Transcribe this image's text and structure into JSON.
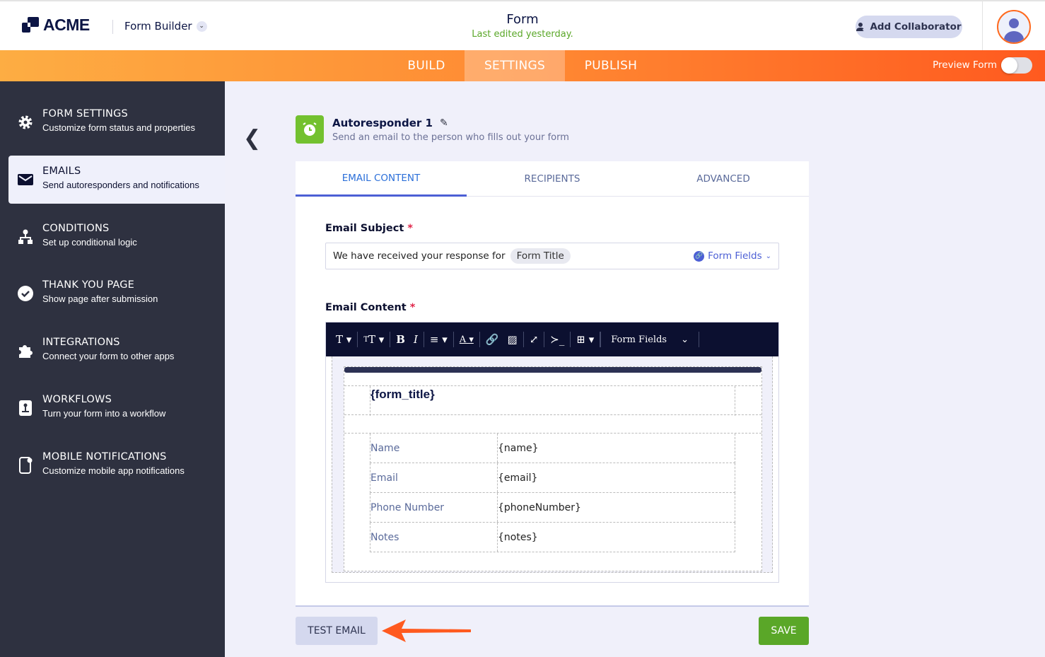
{
  "header": {
    "logo": "ACME",
    "app_name": "Form Builder",
    "form_title": "Form",
    "last_edited": "Last edited yesterday.",
    "add_collaborator": "Add Collaborator"
  },
  "nav": {
    "tabs": [
      "BUILD",
      "SETTINGS",
      "PUBLISH"
    ],
    "active_tab": "SETTINGS",
    "preview_label": "Preview Form",
    "preview_on": false
  },
  "sidebar": {
    "items": [
      {
        "title": "FORM SETTINGS",
        "desc": "Customize form status and properties",
        "icon": "gear-icon"
      },
      {
        "title": "EMAILS",
        "desc": "Send autoresponders and notifications",
        "icon": "envelope-icon",
        "active": true
      },
      {
        "title": "CONDITIONS",
        "desc": "Set up conditional logic",
        "icon": "sitemap-icon"
      },
      {
        "title": "THANK YOU PAGE",
        "desc": "Show page after submission",
        "icon": "check-circle-icon"
      },
      {
        "title": "INTEGRATIONS",
        "desc": "Connect your form to other apps",
        "icon": "puzzle-icon"
      },
      {
        "title": "WORKFLOWS",
        "desc": "Turn your form into a workflow",
        "icon": "workflow-icon"
      },
      {
        "title": "MOBILE NOTIFICATIONS",
        "desc": "Customize mobile app notifications",
        "icon": "mobile-icon"
      }
    ]
  },
  "email": {
    "name": "Autoresponder 1",
    "description": "Send an email to the person who fills out your form",
    "tabs": [
      "EMAIL CONTENT",
      "RECIPIENTS",
      "ADVANCED"
    ],
    "subject_label": "Email Subject",
    "required_mark": "*",
    "subject_text": "We have received your response for",
    "subject_pill": "Form Title",
    "form_fields": "Form Fields",
    "content_label": "Email Content",
    "toolbar_form_fields": "Form Fields",
    "template_title": "{form_title}",
    "rows": [
      {
        "label": "Name",
        "value": "{name}"
      },
      {
        "label": "Email",
        "value": "{email}"
      },
      {
        "label": "Phone Number",
        "value": "{phoneNumber}"
      },
      {
        "label": "Notes",
        "value": "{notes}"
      }
    ]
  },
  "footer": {
    "test_email": "TEST EMAIL",
    "save": "SAVE"
  },
  "colors": {
    "accent_orange": "#ff5a1f",
    "green": "#5aa728",
    "blue": "#4c5fd5",
    "sidebar": "#2e3140"
  }
}
